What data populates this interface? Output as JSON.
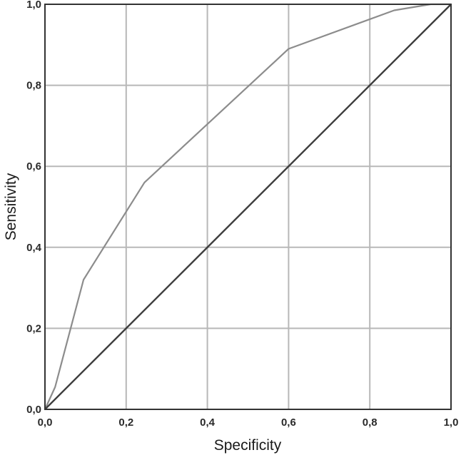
{
  "chart_data": {
    "type": "line",
    "title": "",
    "xlabel": "Specificity",
    "ylabel": "Sensitivity",
    "xlim": [
      0,
      1
    ],
    "ylim": [
      0,
      1
    ],
    "grid": true,
    "xticks": [
      0,
      0.2,
      0.4,
      0.6,
      0.8,
      1.0
    ],
    "yticks": [
      0,
      0.2,
      0.4,
      0.6,
      0.8,
      1.0
    ],
    "xtick_labels": [
      "0,0",
      "0,2",
      "0,4",
      "0,6",
      "0,8",
      "1,0"
    ],
    "ytick_labels": [
      "0,0",
      "0,2",
      "0,4",
      "0,6",
      "0,8",
      "1,0"
    ],
    "series": [
      {
        "x": [
          0.0,
          0.025,
          0.095,
          0.245,
          0.6,
          0.86,
          0.95,
          1.0
        ],
        "y": [
          0.0,
          0.055,
          0.32,
          0.56,
          0.89,
          0.985,
          1.0,
          1.0
        ],
        "color": "#8c8c8c"
      },
      {
        "x": [
          0.0,
          1.0
        ],
        "y": [
          0.0,
          1.0
        ],
        "color": "#3d3d3d"
      }
    ]
  }
}
